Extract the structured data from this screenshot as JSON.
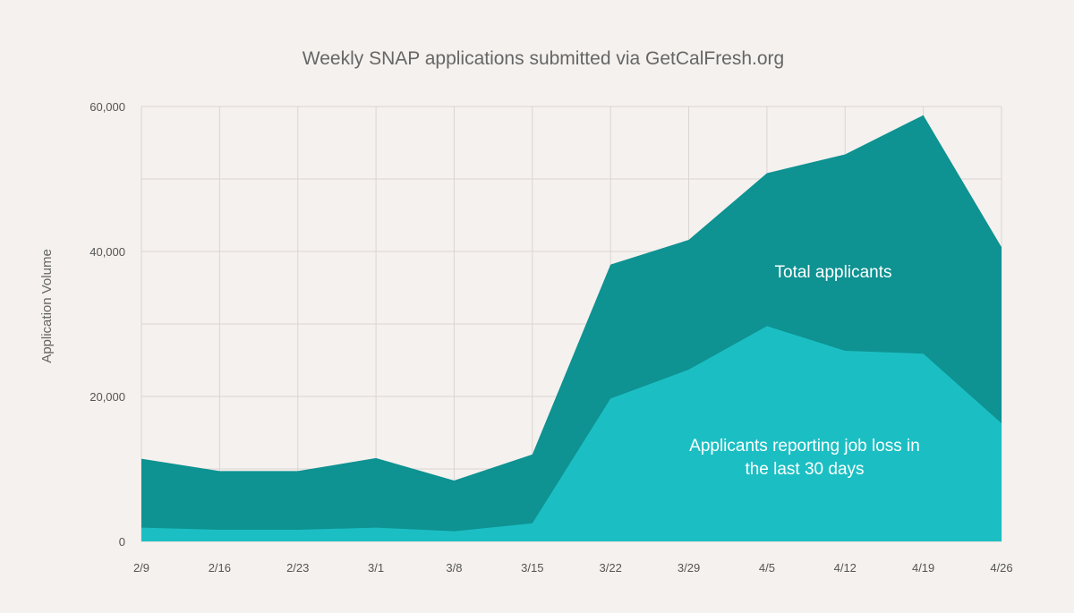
{
  "chart_data": {
    "type": "area",
    "title": "Weekly SNAP applications submitted via GetCalFresh.org",
    "xlabel": "",
    "ylabel": "Application Volume",
    "categories": [
      "2/9",
      "2/16",
      "2/23",
      "3/1",
      "3/8",
      "3/15",
      "3/22",
      "3/29",
      "4/5",
      "4/12",
      "4/19",
      "4/26"
    ],
    "ylim": [
      0,
      60000
    ],
    "yticks": [
      0,
      20000,
      40000,
      60000
    ],
    "ytick_labels": [
      "0",
      "20,000",
      "40,000",
      "60,000"
    ],
    "grid": true,
    "series": [
      {
        "name": "Total applicants",
        "color": "#0e9292",
        "values": [
          11400,
          9700,
          9700,
          11500,
          8400,
          12000,
          38200,
          41600,
          50800,
          53400,
          58800,
          40600
        ]
      },
      {
        "name": "Applicants reporting job loss in the last 30 days",
        "color": "#1bbfc3",
        "values": [
          1900,
          1600,
          1600,
          1900,
          1400,
          2500,
          19700,
          23700,
          29700,
          26300,
          25900,
          16300
        ]
      }
    ],
    "annotations": [
      {
        "series": "Total applicants",
        "lines": [
          "Total applicants"
        ]
      },
      {
        "series": "Applicants reporting job loss in the last 30 days",
        "lines": [
          "Applicants reporting job loss in",
          "the last 30 days"
        ]
      }
    ]
  }
}
